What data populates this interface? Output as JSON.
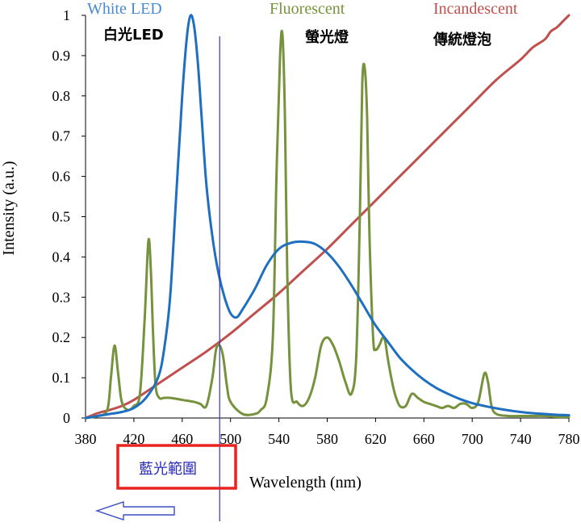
{
  "chart_data": {
    "type": "line",
    "title": "",
    "xlabel": "Wavelength (nm)",
    "ylabel": "Intensity (a.u.)",
    "xlim": [
      380,
      780
    ],
    "ylim": [
      0,
      1
    ],
    "x_ticks": [
      "380",
      "420",
      "460",
      "500",
      "540",
      "580",
      "620",
      "660",
      "700",
      "740",
      "780"
    ],
    "y_ticks": [
      "0",
      "0.1",
      "0.2",
      "0.3",
      "0.4",
      "0.5",
      "0.6",
      "0.7",
      "0.8",
      "0.9",
      "1"
    ],
    "grid": false,
    "series": [
      {
        "name": "White LED",
        "name_zh": "白光LED",
        "color": "#1f6fc0",
        "x": [
          380,
          390,
          400,
          410,
          420,
          430,
          440,
          445,
          450,
          455,
          460,
          464,
          467,
          470,
          473,
          476,
          480,
          485,
          490,
          495,
          500,
          505,
          510,
          520,
          530,
          540,
          550,
          560,
          570,
          580,
          590,
          600,
          610,
          620,
          630,
          640,
          650,
          660,
          670,
          680,
          690,
          700,
          710,
          720,
          730,
          740,
          750,
          760,
          770,
          780
        ],
        "y": [
          0,
          0.005,
          0.01,
          0.015,
          0.025,
          0.05,
          0.1,
          0.17,
          0.3,
          0.55,
          0.8,
          0.95,
          1.0,
          0.97,
          0.88,
          0.75,
          0.58,
          0.45,
          0.36,
          0.3,
          0.26,
          0.25,
          0.27,
          0.32,
          0.38,
          0.42,
          0.435,
          0.438,
          0.432,
          0.41,
          0.375,
          0.33,
          0.28,
          0.23,
          0.19,
          0.15,
          0.12,
          0.095,
          0.075,
          0.06,
          0.047,
          0.037,
          0.03,
          0.024,
          0.019,
          0.015,
          0.012,
          0.01,
          0.008,
          0.007
        ]
      },
      {
        "name": "Fluorescent",
        "name_zh": "螢光燈",
        "color": "#76923c",
        "x": [
          380,
          390,
          398,
          401,
          404,
          407,
          410,
          415,
          420,
          425,
          429,
          432,
          434,
          436,
          438,
          441,
          445,
          450,
          460,
          470,
          475,
          480,
          485,
          488,
          491,
          494,
          497,
          500,
          510,
          520,
          525,
          530,
          535,
          538,
          541,
          543,
          545,
          547,
          550,
          555,
          560,
          565,
          570,
          575,
          580,
          585,
          590,
          595,
          600,
          604,
          607,
          609,
          611,
          613,
          615,
          618,
          620,
          623,
          626,
          628,
          630,
          633,
          636,
          640,
          645,
          650,
          655,
          660,
          665,
          670,
          675,
          680,
          685,
          690,
          695,
          700,
          705,
          710,
          713,
          716,
          720,
          730,
          740,
          750,
          760,
          770,
          780
        ],
        "y": [
          0,
          0.005,
          0.02,
          0.1,
          0.18,
          0.11,
          0.04,
          0.02,
          0.03,
          0.06,
          0.25,
          0.44,
          0.37,
          0.2,
          0.08,
          0.05,
          0.05,
          0.05,
          0.045,
          0.04,
          0.035,
          0.03,
          0.1,
          0.17,
          0.18,
          0.15,
          0.08,
          0.04,
          0.01,
          0.01,
          0.02,
          0.05,
          0.2,
          0.6,
          0.9,
          0.95,
          0.75,
          0.35,
          0.07,
          0.04,
          0.03,
          0.05,
          0.1,
          0.18,
          0.2,
          0.18,
          0.14,
          0.09,
          0.06,
          0.15,
          0.5,
          0.83,
          0.87,
          0.75,
          0.45,
          0.2,
          0.17,
          0.18,
          0.2,
          0.19,
          0.15,
          0.1,
          0.06,
          0.03,
          0.03,
          0.06,
          0.05,
          0.04,
          0.035,
          0.03,
          0.025,
          0.03,
          0.025,
          0.035,
          0.035,
          0.025,
          0.04,
          0.11,
          0.09,
          0.03,
          0.01,
          0.005,
          0.005,
          0.005,
          0.005,
          0.003,
          0.003
        ]
      },
      {
        "name": "Incandescent",
        "name_zh": "傳統燈泡",
        "color": "#c0504d",
        "x": [
          380,
          390,
          400,
          410,
          420,
          440,
          460,
          480,
          500,
          520,
          540,
          560,
          580,
          600,
          620,
          640,
          660,
          680,
          700,
          720,
          740,
          750,
          760,
          765,
          770,
          775,
          780
        ],
        "y": [
          0,
          0.012,
          0.02,
          0.03,
          0.045,
          0.085,
          0.125,
          0.165,
          0.21,
          0.26,
          0.31,
          0.365,
          0.42,
          0.48,
          0.54,
          0.6,
          0.66,
          0.72,
          0.78,
          0.84,
          0.89,
          0.92,
          0.94,
          0.96,
          0.97,
          0.985,
          1.0
        ]
      }
    ],
    "annotations": {
      "marker_x": 491,
      "blue_range_label": "藍光範圍",
      "arrow_direction": "left"
    }
  }
}
